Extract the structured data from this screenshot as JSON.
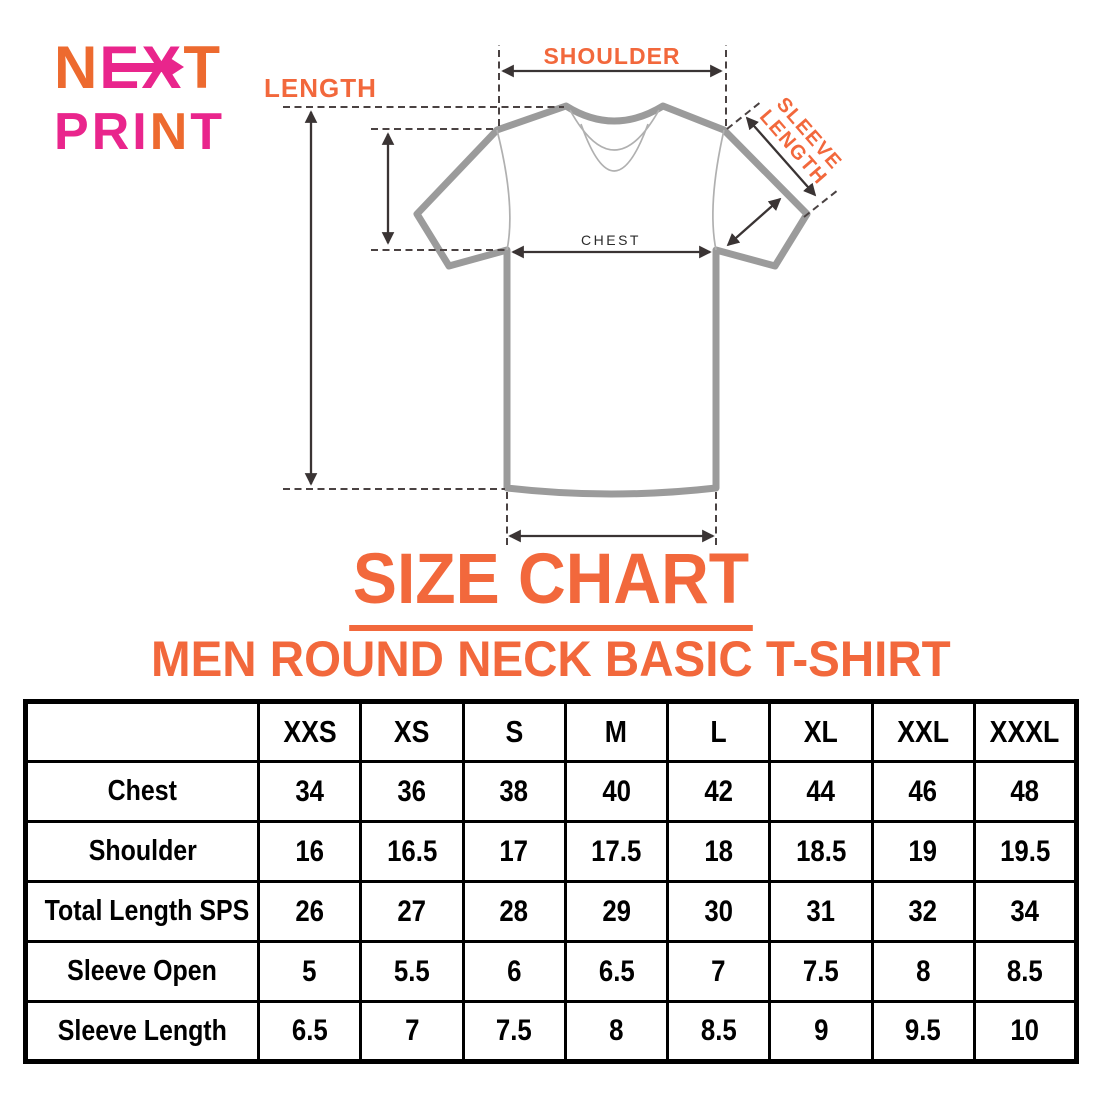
{
  "colors": {
    "accent_orange": "#F2683C",
    "logo_orange": "#ED6A2F",
    "logo_pink": "#E9258C",
    "shirt_outline": "#9B9B9B",
    "measure_line": "#3A3434",
    "table_border": "#000000"
  },
  "logo": {
    "words": [
      {
        "target": "logo-word-next",
        "letters": [
          [
            "N",
            "orange"
          ],
          [
            "E",
            "pink"
          ],
          [
            "X",
            "pink"
          ],
          [
            "T",
            "orange"
          ]
        ]
      },
      {
        "target": "logo-word-print",
        "letters": [
          [
            "P",
            "pink"
          ],
          [
            "R",
            "pink"
          ],
          [
            "I",
            "pink"
          ],
          [
            "N",
            "orange"
          ],
          [
            "T",
            "pink"
          ]
        ]
      }
    ]
  },
  "diagram": {
    "labels": {
      "length": "LENGTH",
      "shoulder": "SHOULDER",
      "sleeve_line1": "SLEEVE",
      "sleeve_line2": "LENGTH",
      "chest": "CHEST"
    }
  },
  "title": "SIZE CHART",
  "subtitle": "MEN ROUND NECK BASIC T-SHIRT",
  "table": {
    "corner_label": "",
    "size_headers": [
      "XXS",
      "XS",
      "S",
      "M",
      "L",
      "XL",
      "XXL",
      "XXXL"
    ],
    "rows": [
      {
        "label": "Chest",
        "values": [
          "34",
          "36",
          "38",
          "40",
          "42",
          "44",
          "46",
          "48"
        ]
      },
      {
        "label": "Shoulder",
        "values": [
          "16",
          "16.5",
          "17",
          "17.5",
          "18",
          "18.5",
          "19",
          "19.5"
        ]
      },
      {
        "label": "Total Length SPS",
        "values": [
          "26",
          "27",
          "28",
          "29",
          "30",
          "31",
          "32",
          "34"
        ]
      },
      {
        "label": "Sleeve Open",
        "values": [
          "5",
          "5.5",
          "6",
          "6.5",
          "7",
          "7.5",
          "8",
          "8.5"
        ]
      },
      {
        "label": "Sleeve Length",
        "values": [
          "6.5",
          "7",
          "7.5",
          "8",
          "8.5",
          "9",
          "9.5",
          "10"
        ]
      }
    ]
  },
  "chart_data": {
    "type": "table",
    "title": "SIZE CHART",
    "subtitle": "MEN ROUND NECK BASIC T-SHIRT",
    "columns": [
      "XXS",
      "XS",
      "S",
      "M",
      "L",
      "XL",
      "XXL",
      "XXXL"
    ],
    "rows": [
      {
        "measure": "Chest",
        "values": [
          34,
          36,
          38,
          40,
          42,
          44,
          46,
          48
        ]
      },
      {
        "measure": "Shoulder",
        "values": [
          16,
          16.5,
          17,
          17.5,
          18,
          18.5,
          19,
          19.5
        ]
      },
      {
        "measure": "Total Length SPS",
        "values": [
          26,
          27,
          28,
          29,
          30,
          31,
          32,
          34
        ]
      },
      {
        "measure": "Sleeve Open",
        "values": [
          5,
          5.5,
          6,
          6.5,
          7,
          7.5,
          8,
          8.5
        ]
      },
      {
        "measure": "Sleeve Length",
        "values": [
          6.5,
          7,
          7.5,
          8,
          8.5,
          9,
          9.5,
          10
        ]
      }
    ],
    "measured_dimensions_in_diagram": [
      "LENGTH",
      "SHOULDER",
      "SLEEVE LENGTH",
      "CHEST"
    ]
  }
}
